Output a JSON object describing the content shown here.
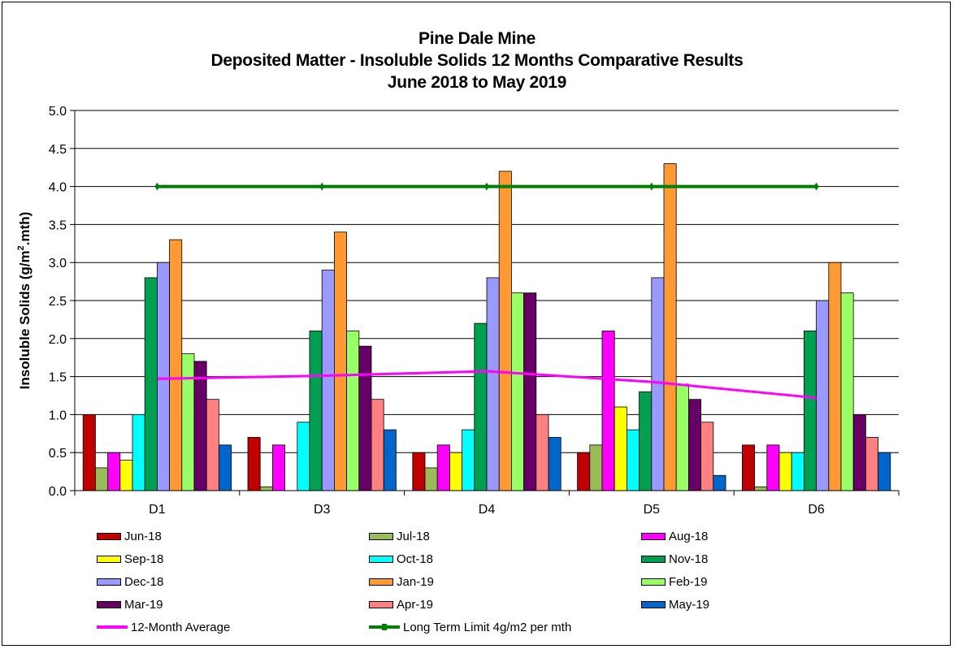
{
  "chart_data": {
    "type": "bar",
    "title_lines": [
      "Pine Dale Mine",
      "Deposited Matter - Insoluble Solids 12 Months Comparative Results",
      "June 2018 to May 2019"
    ],
    "ylabel_main": "Insoluble Solids (g/m",
    "ylabel_sup": "2",
    "ylabel_tail": ".mth)",
    "xlabel": "",
    "ylim": [
      0,
      5
    ],
    "yticks": [
      "0.0",
      "0.5",
      "1.0",
      "1.5",
      "2.0",
      "2.5",
      "3.0",
      "3.5",
      "4.0",
      "4.5",
      "5.0"
    ],
    "grid": true,
    "legend_position": "bottom",
    "categories": [
      "D1",
      "D3",
      "D4",
      "D5",
      "D6"
    ],
    "series": [
      {
        "name": "Jun-18",
        "color": "#C00000",
        "values": [
          1.0,
          0.7,
          0.5,
          0.5,
          0.6
        ]
      },
      {
        "name": "Jul-18",
        "color": "#9BBB59",
        "values": [
          0.3,
          0.05,
          0.3,
          0.6,
          0.05
        ]
      },
      {
        "name": "Aug-18",
        "color": "#FF00FF",
        "values": [
          0.5,
          0.6,
          0.6,
          2.1,
          0.6
        ]
      },
      {
        "name": "Sep-18",
        "color": "#FFFF00",
        "values": [
          0.4,
          0.0,
          0.5,
          1.1,
          0.5
        ]
      },
      {
        "name": "Oct-18",
        "color": "#00FFFF",
        "values": [
          1.0,
          0.9,
          0.8,
          0.8,
          0.5
        ]
      },
      {
        "name": "Nov-18",
        "color": "#00A050",
        "values": [
          2.8,
          2.1,
          2.2,
          1.3,
          2.1
        ]
      },
      {
        "name": "Dec-18",
        "color": "#9999FF",
        "values": [
          3.0,
          2.9,
          2.8,
          2.8,
          2.5
        ]
      },
      {
        "name": "Jan-19",
        "color": "#FF9933",
        "values": [
          3.3,
          3.4,
          4.2,
          4.3,
          3.0
        ]
      },
      {
        "name": "Feb-19",
        "color": "#99FF66",
        "values": [
          1.8,
          2.1,
          2.6,
          1.4,
          2.6
        ]
      },
      {
        "name": "Mar-19",
        "color": "#660066",
        "values": [
          1.7,
          1.9,
          2.6,
          1.2,
          1.0
        ]
      },
      {
        "name": "Apr-19",
        "color": "#FF8080",
        "values": [
          1.2,
          1.2,
          1.0,
          0.9,
          0.7
        ]
      },
      {
        "name": "May-19",
        "color": "#0066CC",
        "values": [
          0.6,
          0.8,
          0.7,
          0.2,
          0.5
        ]
      }
    ],
    "lines": [
      {
        "name": "12-Month Average",
        "color": "#FF00FF",
        "values": [
          1.47,
          1.51,
          1.57,
          1.43,
          1.22
        ]
      },
      {
        "name": "Long Term Limit 4g/m2 per mth",
        "color": "#008000",
        "values": [
          4.0,
          4.0,
          4.0,
          4.0,
          4.0
        ]
      }
    ]
  }
}
